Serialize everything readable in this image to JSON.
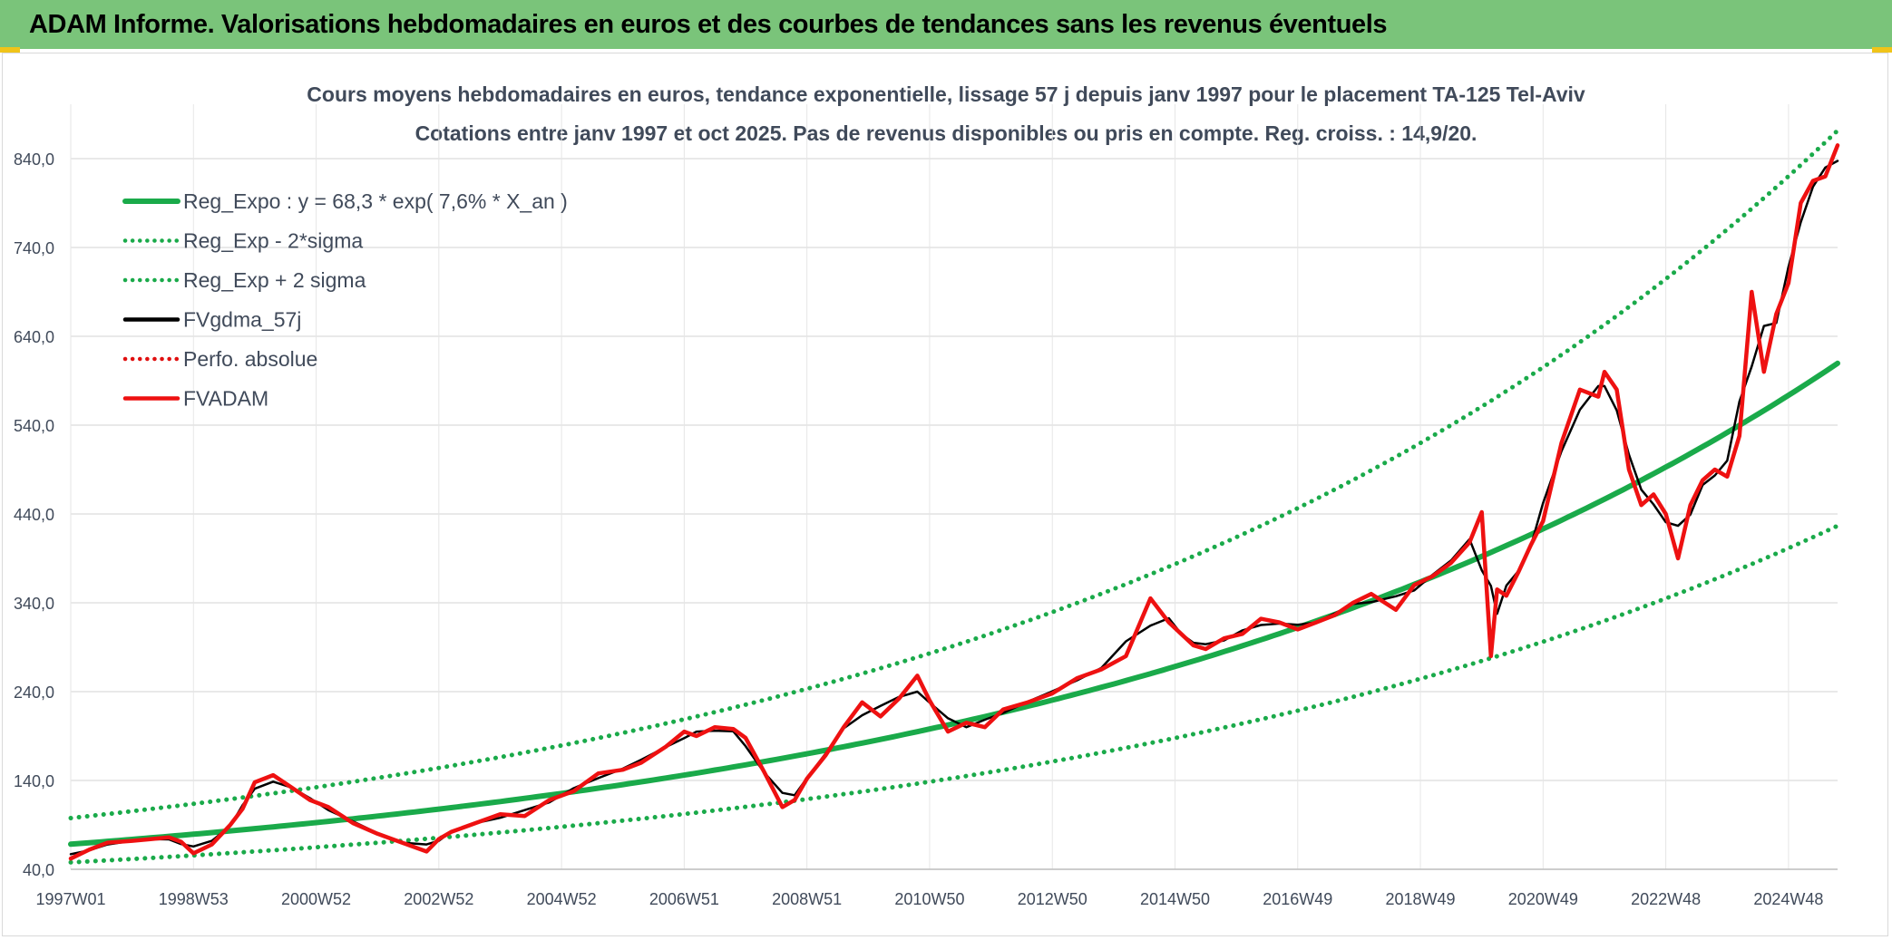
{
  "header": {
    "title": "ADAM Informe. Valorisations hebdomadaires en euros et des courbes de tendances sans les revenus éventuels"
  },
  "chart_data": {
    "type": "line",
    "title": "Cours moyens hebdomadaires en euros, tendance exponentielle, lissage 57 j depuis janv 1997 pour le placement TA-125 Tel-Aviv",
    "subtitle": "Cotations entre janv 1997 et oct 2025. Pas de revenus disponibles ou pris en compte. Reg. croiss. : 14,9/20.",
    "xlabel": "",
    "ylabel": "",
    "ylim": [
      40,
      840
    ],
    "y_ticks": [
      "40,0",
      "140,0",
      "240,0",
      "340,0",
      "440,0",
      "540,0",
      "640,0",
      "740,0",
      "840,0"
    ],
    "y_tick_values": [
      40,
      140,
      240,
      340,
      440,
      540,
      640,
      740,
      840
    ],
    "x_ticks": [
      "1997W01",
      "1998W53",
      "2000W52",
      "2002W52",
      "2004W52",
      "2006W51",
      "2008W51",
      "2010W50",
      "2012W50",
      "2014W50",
      "2016W49",
      "2018W49",
      "2020W49",
      "2022W48",
      "2024W48"
    ],
    "x_tick_years": [
      1997.0,
      1999.0,
      2001.0,
      2003.0,
      2005.0,
      2007.0,
      2009.0,
      2011.0,
      2013.0,
      2015.0,
      2017.0,
      2019.0,
      2021.0,
      2023.0,
      2025.0
    ],
    "xlim": [
      1997.0,
      2025.8
    ],
    "grid": true,
    "legend_position": "top-left",
    "regression": {
      "a": 68.3,
      "rate": 0.076
    },
    "series": [
      {
        "name": "Reg_Expo : y = 68,3 * exp( 7,6% *  X_an )",
        "color": "#1aaa4a",
        "style": "solid-thick",
        "kind": "exp",
        "factor": 1.0
      },
      {
        "name": "Reg_Exp - 2*sigma",
        "color": "#1aaa4a",
        "style": "dotted",
        "kind": "exp",
        "factor": 0.7
      },
      {
        "name": "Reg_Exp + 2 sigma",
        "color": "#1aaa4a",
        "style": "dotted",
        "kind": "exp",
        "factor": 1.43
      },
      {
        "name": "FVgdma_57j",
        "color": "#000000",
        "style": "solid",
        "kind": "smooth"
      },
      {
        "name": "Perfo. absolue",
        "color": "#e01010",
        "style": "dotted",
        "kind": "none"
      },
      {
        "name": "FVADAM",
        "color": "#ee1111",
        "style": "solid-thick",
        "kind": "data"
      }
    ],
    "x": [
      1997.0,
      1997.3,
      1997.6,
      1998.0,
      1998.3,
      1998.6,
      1998.8,
      1999.0,
      1999.3,
      1999.6,
      1999.8,
      2000.0,
      2000.3,
      2000.6,
      2000.9,
      2001.2,
      2001.6,
      2002.0,
      2002.4,
      2002.8,
      2003.0,
      2003.2,
      2003.6,
      2004.0,
      2004.4,
      2004.8,
      2005.2,
      2005.6,
      2006.0,
      2006.3,
      2006.7,
      2007.0,
      2007.2,
      2007.5,
      2007.8,
      2008.0,
      2008.3,
      2008.6,
      2008.8,
      2009.0,
      2009.3,
      2009.6,
      2009.9,
      2010.2,
      2010.5,
      2010.8,
      2011.0,
      2011.3,
      2011.6,
      2011.9,
      2012.2,
      2012.6,
      2013.0,
      2013.4,
      2013.8,
      2014.2,
      2014.6,
      2014.9,
      2015.1,
      2015.3,
      2015.5,
      2015.8,
      2016.1,
      2016.4,
      2016.7,
      2017.0,
      2017.3,
      2017.6,
      2017.9,
      2018.2,
      2018.6,
      2018.9,
      2019.2,
      2019.5,
      2019.8,
      2020.0,
      2020.15,
      2020.25,
      2020.4,
      2020.6,
      2020.8,
      2021.0,
      2021.3,
      2021.6,
      2021.9,
      2022.0,
      2022.2,
      2022.4,
      2022.6,
      2022.8,
      2023.0,
      2023.2,
      2023.4,
      2023.6,
      2023.8,
      2024.0,
      2024.2,
      2024.4,
      2024.6,
      2024.8,
      2025.0,
      2025.2,
      2025.4,
      2025.6,
      2025.8
    ],
    "values": [
      52,
      62,
      70,
      72,
      74,
      76,
      71,
      58,
      68,
      90,
      108,
      138,
      146,
      132,
      118,
      110,
      92,
      80,
      70,
      60,
      74,
      82,
      92,
      102,
      100,
      118,
      128,
      148,
      152,
      160,
      178,
      195,
      190,
      200,
      198,
      188,
      150,
      110,
      118,
      142,
      168,
      200,
      228,
      212,
      232,
      258,
      230,
      195,
      205,
      200,
      220,
      228,
      238,
      255,
      265,
      280,
      345,
      318,
      305,
      292,
      288,
      300,
      305,
      322,
      318,
      310,
      318,
      326,
      340,
      350,
      332,
      360,
      370,
      385,
      408,
      442,
      280,
      355,
      348,
      375,
      405,
      432,
      520,
      580,
      572,
      600,
      580,
      490,
      450,
      462,
      440,
      390,
      450,
      478,
      490,
      482,
      528,
      690,
      600,
      665,
      700,
      790,
      815,
      820,
      855
    ]
  }
}
